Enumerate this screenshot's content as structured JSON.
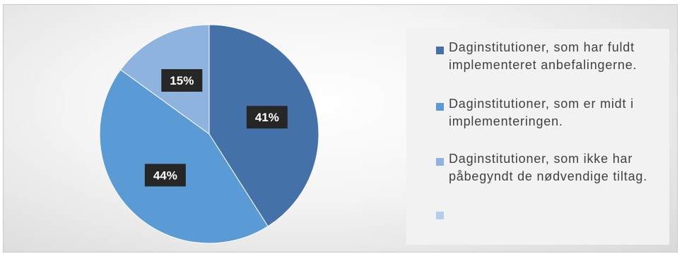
{
  "chart_data": {
    "type": "pie",
    "categories": [
      "Daginstitutioner, som har fuldt implementeret anbefalingerne.",
      "Daginstitutioner, som er midt i implementeringen.",
      "Daginstitutioner, som ikke har påbegyndt de nødvendige tiltag.",
      ""
    ],
    "values": [
      41,
      44,
      15,
      0
    ],
    "data_labels": [
      "41%",
      "44%",
      "15%",
      ""
    ],
    "colors": [
      "#4472a8",
      "#5b9bd5",
      "#8fb3df",
      "#b4cdec"
    ],
    "title": "",
    "legend_position": "right"
  }
}
